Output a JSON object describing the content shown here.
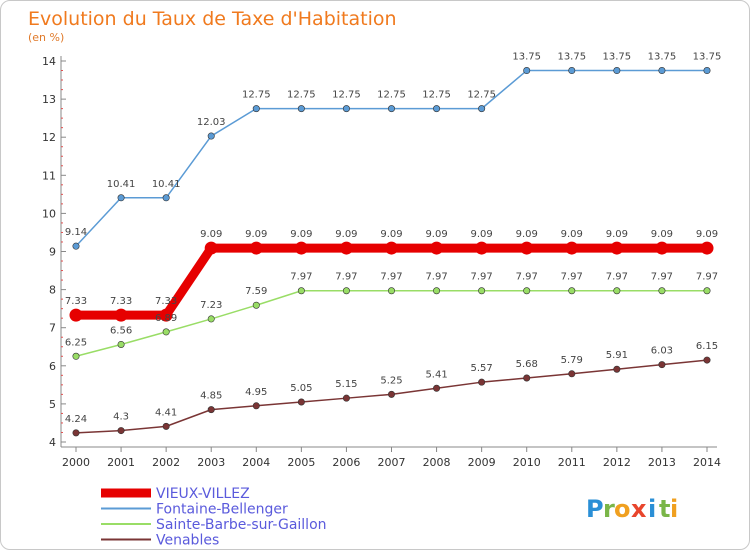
{
  "chart_data": {
    "type": "line",
    "title": "Evolution du Taux de Taxe d'Habitation",
    "subtitle": "(en %)",
    "x": [
      "2000",
      "2001",
      "2002",
      "2003",
      "2004",
      "2005",
      "2006",
      "2007",
      "2008",
      "2009",
      "2010",
      "2011",
      "2012",
      "2013",
      "2014"
    ],
    "ylim": [
      4,
      14
    ],
    "yticks": [
      4,
      5,
      6,
      7,
      8,
      9,
      10,
      11,
      12,
      13,
      14
    ],
    "grid": false,
    "legend_position": "bottom-left",
    "series": [
      {
        "name": "VIEUX-VILLEZ",
        "color": "#e60000",
        "values": [
          7.33,
          7.33,
          7.33,
          9.09,
          9.09,
          9.09,
          9.09,
          9.09,
          9.09,
          9.09,
          9.09,
          9.09,
          9.09,
          9.09,
          9.09
        ],
        "labels": [
          "7.33",
          "7.33",
          "7.33",
          "9.09",
          "9.09",
          "9.09",
          "9.09",
          "9.09",
          "9.09",
          "9.09",
          "9.09",
          "9.09",
          "9.09",
          "9.09",
          "9.09"
        ]
      },
      {
        "name": "Fontaine-Bellenger",
        "color": "#5b9bd5",
        "values": [
          9.14,
          10.41,
          10.41,
          12.03,
          12.75,
          12.75,
          12.75,
          12.75,
          12.75,
          12.75,
          13.75,
          13.75,
          13.75,
          13.75,
          13.75
        ],
        "labels": [
          "9.14",
          "10.41",
          "10.41",
          "12.03",
          "12.75",
          "12.75",
          "12.75",
          "12.75",
          "12.75",
          "12.75",
          "13.75",
          "13.75",
          "13.75",
          "13.75",
          "13.75"
        ]
      },
      {
        "name": "Sainte-Barbe-sur-Gaillon",
        "color": "#99dd66",
        "values": [
          6.25,
          6.56,
          6.89,
          7.23,
          7.59,
          7.97,
          7.97,
          7.97,
          7.97,
          7.97,
          7.97,
          7.97,
          7.97,
          7.97,
          7.97
        ],
        "labels": [
          "6.25",
          "6.56",
          "6.89",
          "7.23",
          "7.59",
          "7.97",
          "7.97",
          "7.97",
          "7.97",
          "7.97",
          "7.97",
          "7.97",
          "7.97",
          "7.97",
          "7.97"
        ]
      },
      {
        "name": "Venables",
        "color": "#7a3535",
        "values": [
          4.24,
          4.3,
          4.41,
          4.85,
          4.95,
          5.05,
          5.15,
          5.25,
          5.41,
          5.57,
          5.68,
          5.79,
          5.91,
          6.03,
          6.15
        ],
        "labels": [
          "4.24",
          "4.3",
          "4.41",
          "4.85",
          "4.95",
          "5.05",
          "5.15",
          "5.25",
          "5.41",
          "5.57",
          "5.68",
          "5.79",
          "5.91",
          "6.03",
          "6.15"
        ]
      }
    ]
  },
  "logo": {
    "text": "Proxiti",
    "letters": [
      {
        "ch": "P",
        "color": "#2a8fd6"
      },
      {
        "ch": "r",
        "color": "#7ab648"
      },
      {
        "ch": "o",
        "color": "#f0a020"
      },
      {
        "ch": "x",
        "color": "#e8452c"
      },
      {
        "ch": "i",
        "color": "#2a8fd6"
      },
      {
        "ch": "t",
        "color": "#7ab648"
      },
      {
        "ch": "i",
        "color": "#f0a020"
      }
    ]
  }
}
